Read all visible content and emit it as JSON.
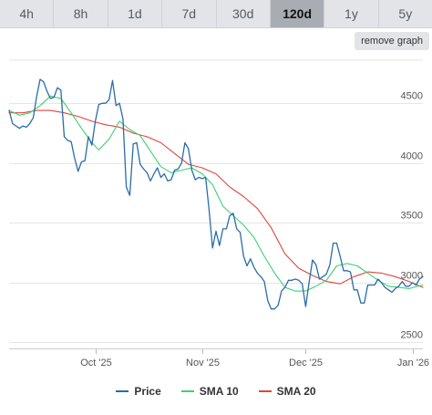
{
  "tabs": [
    {
      "label": "4h",
      "active": false
    },
    {
      "label": "8h",
      "active": false
    },
    {
      "label": "1d",
      "active": false
    },
    {
      "label": "7d",
      "active": false
    },
    {
      "label": "30d",
      "active": false
    },
    {
      "label": "120d",
      "active": true
    },
    {
      "label": "1y",
      "active": false
    },
    {
      "label": "5y",
      "active": false
    }
  ],
  "remove_graph_label": "remove graph",
  "colors": {
    "price": "#2a6ca8",
    "sma10": "#3ecf72",
    "sma20": "#e0453b",
    "grid": "#e6e6e6"
  },
  "chart_data": {
    "type": "line",
    "title": "",
    "xlabel": "",
    "ylabel": "",
    "x_ticks": [
      {
        "label": "Oct '25",
        "date": "2025-10-01"
      },
      {
        "label": "Nov '25",
        "date": "2025-11-01"
      },
      {
        "label": "Dec '25",
        "date": "2025-12-01"
      },
      {
        "label": "Jan '26",
        "date": "2026-01-01"
      }
    ],
    "xlim": [
      "2025-09-06",
      "2026-01-04"
    ],
    "y_ticks": [
      2500,
      3000,
      3500,
      4000,
      4500
    ],
    "ylim": [
      2450,
      4860
    ],
    "grid": true,
    "legend": "bottom-center",
    "series": [
      {
        "name": "Price",
        "color": "#2a6ca8",
        "points": [
          [
            "2025-09-06",
            4440
          ],
          [
            "2025-09-07",
            4330
          ],
          [
            "2025-09-08",
            4310
          ],
          [
            "2025-09-09",
            4290
          ],
          [
            "2025-09-10",
            4310
          ],
          [
            "2025-09-11",
            4300
          ],
          [
            "2025-09-12",
            4330
          ],
          [
            "2025-09-13",
            4380
          ],
          [
            "2025-09-14",
            4560
          ],
          [
            "2025-09-15",
            4700
          ],
          [
            "2025-09-16",
            4680
          ],
          [
            "2025-09-17",
            4600
          ],
          [
            "2025-09-18",
            4540
          ],
          [
            "2025-09-19",
            4550
          ],
          [
            "2025-09-20",
            4630
          ],
          [
            "2025-09-21",
            4610
          ],
          [
            "2025-09-22",
            4220
          ],
          [
            "2025-09-23",
            4190
          ],
          [
            "2025-09-24",
            4180
          ],
          [
            "2025-09-25",
            4040
          ],
          [
            "2025-09-26",
            3930
          ],
          [
            "2025-09-27",
            4010
          ],
          [
            "2025-09-28",
            4020
          ],
          [
            "2025-09-29",
            4220
          ],
          [
            "2025-09-30",
            4150
          ],
          [
            "2025-10-01",
            4350
          ],
          [
            "2025-10-02",
            4490
          ],
          [
            "2025-10-03",
            4500
          ],
          [
            "2025-10-04",
            4500
          ],
          [
            "2025-10-05",
            4530
          ],
          [
            "2025-10-06",
            4690
          ],
          [
            "2025-10-07",
            4480
          ],
          [
            "2025-10-08",
            4500
          ],
          [
            "2025-10-09",
            4370
          ],
          [
            "2025-10-10",
            3800
          ],
          [
            "2025-10-11",
            3730
          ],
          [
            "2025-10-12",
            4160
          ],
          [
            "2025-10-13",
            4170
          ],
          [
            "2025-10-14",
            3990
          ],
          [
            "2025-10-15",
            3950
          ],
          [
            "2025-10-16",
            3920
          ],
          [
            "2025-10-17",
            3850
          ],
          [
            "2025-10-18",
            3910
          ],
          [
            "2025-10-19",
            3960
          ],
          [
            "2025-10-20",
            3880
          ],
          [
            "2025-10-21",
            3910
          ],
          [
            "2025-10-22",
            3850
          ],
          [
            "2025-10-23",
            3860
          ],
          [
            "2025-10-24",
            3940
          ],
          [
            "2025-10-25",
            3950
          ],
          [
            "2025-10-26",
            4000
          ],
          [
            "2025-10-27",
            4170
          ],
          [
            "2025-10-28",
            4120
          ],
          [
            "2025-10-29",
            3940
          ],
          [
            "2025-10-30",
            3860
          ],
          [
            "2025-10-31",
            3880
          ],
          [
            "2025-11-01",
            3870
          ],
          [
            "2025-11-02",
            3880
          ],
          [
            "2025-11-03",
            3610
          ],
          [
            "2025-11-04",
            3290
          ],
          [
            "2025-11-05",
            3430
          ],
          [
            "2025-11-06",
            3310
          ],
          [
            "2025-11-07",
            3450
          ],
          [
            "2025-11-08",
            3450
          ],
          [
            "2025-11-09",
            3560
          ],
          [
            "2025-11-10",
            3580
          ],
          [
            "2025-11-11",
            3450
          ],
          [
            "2025-11-12",
            3420
          ],
          [
            "2025-11-13",
            3220
          ],
          [
            "2025-11-14",
            3140
          ],
          [
            "2025-11-15",
            3200
          ],
          [
            "2025-11-16",
            3130
          ],
          [
            "2025-11-17",
            3080
          ],
          [
            "2025-11-18",
            3050
          ],
          [
            "2025-11-19",
            3010
          ],
          [
            "2025-11-20",
            2850
          ],
          [
            "2025-11-21",
            2780
          ],
          [
            "2025-11-22",
            2780
          ],
          [
            "2025-11-23",
            2810
          ],
          [
            "2025-11-24",
            2930
          ],
          [
            "2025-11-25",
            2960
          ],
          [
            "2025-11-26",
            3020
          ],
          [
            "2025-11-27",
            3020
          ],
          [
            "2025-11-28",
            3030
          ],
          [
            "2025-11-29",
            3020
          ],
          [
            "2025-11-30",
            2990
          ],
          [
            "2025-12-01",
            2800
          ],
          [
            "2025-12-02",
            3000
          ],
          [
            "2025-12-03",
            3190
          ],
          [
            "2025-12-04",
            3150
          ],
          [
            "2025-12-05",
            3030
          ],
          [
            "2025-12-06",
            3050
          ],
          [
            "2025-12-07",
            3070
          ],
          [
            "2025-12-08",
            3150
          ],
          [
            "2025-12-09",
            3330
          ],
          [
            "2025-12-10",
            3330
          ],
          [
            "2025-12-11",
            3220
          ],
          [
            "2025-12-12",
            3100
          ],
          [
            "2025-12-13",
            3100
          ],
          [
            "2025-12-14",
            3090
          ],
          [
            "2025-12-15",
            2940
          ],
          [
            "2025-12-16",
            2940
          ],
          [
            "2025-12-17",
            2830
          ],
          [
            "2025-12-18",
            2830
          ],
          [
            "2025-12-19",
            2980
          ],
          [
            "2025-12-20",
            2980
          ],
          [
            "2025-12-21",
            2980
          ],
          [
            "2025-12-22",
            3030
          ],
          [
            "2025-12-23",
            3000
          ],
          [
            "2025-12-24",
            2960
          ],
          [
            "2025-12-25",
            2940
          ],
          [
            "2025-12-26",
            2920
          ],
          [
            "2025-12-27",
            2950
          ],
          [
            "2025-12-28",
            2970
          ],
          [
            "2025-12-29",
            3010
          ],
          [
            "2025-12-30",
            2970
          ],
          [
            "2025-12-31",
            2970
          ],
          [
            "2026-01-01",
            3000
          ],
          [
            "2026-01-02",
            2980
          ],
          [
            "2026-01-03",
            3030
          ],
          [
            "2026-01-04",
            3050
          ]
        ]
      },
      {
        "name": "SMA 10",
        "color": "#3ecf72",
        "points": [
          [
            "2025-09-06",
            4440
          ],
          [
            "2025-09-09",
            4400
          ],
          [
            "2025-09-12",
            4420
          ],
          [
            "2025-09-15",
            4480
          ],
          [
            "2025-09-18",
            4560
          ],
          [
            "2025-09-21",
            4540
          ],
          [
            "2025-09-24",
            4420
          ],
          [
            "2025-09-27",
            4290
          ],
          [
            "2025-09-30",
            4170
          ],
          [
            "2025-10-02",
            4110
          ],
          [
            "2025-10-05",
            4200
          ],
          [
            "2025-10-08",
            4350
          ],
          [
            "2025-10-11",
            4280
          ],
          [
            "2025-10-14",
            4230
          ],
          [
            "2025-10-17",
            4100
          ],
          [
            "2025-10-20",
            3970
          ],
          [
            "2025-10-23",
            3920
          ],
          [
            "2025-10-26",
            3940
          ],
          [
            "2025-10-29",
            3960
          ],
          [
            "2025-11-01",
            3910
          ],
          [
            "2025-11-04",
            3820
          ],
          [
            "2025-11-07",
            3640
          ],
          [
            "2025-11-10",
            3560
          ],
          [
            "2025-11-13",
            3480
          ],
          [
            "2025-11-16",
            3380
          ],
          [
            "2025-11-19",
            3220
          ],
          [
            "2025-11-22",
            3080
          ],
          [
            "2025-11-25",
            2960
          ],
          [
            "2025-11-28",
            2930
          ],
          [
            "2025-12-01",
            2930
          ],
          [
            "2025-12-04",
            2970
          ],
          [
            "2025-12-07",
            3020
          ],
          [
            "2025-12-10",
            3140
          ],
          [
            "2025-12-13",
            3160
          ],
          [
            "2025-12-16",
            3140
          ],
          [
            "2025-12-19",
            3080
          ],
          [
            "2025-12-22",
            3020
          ],
          [
            "2025-12-25",
            2970
          ],
          [
            "2025-12-28",
            2960
          ],
          [
            "2025-12-31",
            2950
          ],
          [
            "2026-01-04",
            2980
          ]
        ]
      },
      {
        "name": "SMA 20",
        "color": "#e0453b",
        "points": [
          [
            "2025-09-06",
            4420
          ],
          [
            "2025-09-10",
            4420
          ],
          [
            "2025-09-14",
            4440
          ],
          [
            "2025-09-18",
            4440
          ],
          [
            "2025-09-22",
            4420
          ],
          [
            "2025-09-26",
            4390
          ],
          [
            "2025-09-30",
            4350
          ],
          [
            "2025-10-04",
            4320
          ],
          [
            "2025-10-08",
            4300
          ],
          [
            "2025-10-12",
            4250
          ],
          [
            "2025-10-16",
            4220
          ],
          [
            "2025-10-20",
            4170
          ],
          [
            "2025-10-24",
            4080
          ],
          [
            "2025-10-28",
            3990
          ],
          [
            "2025-11-01",
            3960
          ],
          [
            "2025-11-05",
            3910
          ],
          [
            "2025-11-09",
            3800
          ],
          [
            "2025-11-13",
            3720
          ],
          [
            "2025-11-17",
            3620
          ],
          [
            "2025-11-21",
            3460
          ],
          [
            "2025-11-25",
            3240
          ],
          [
            "2025-11-29",
            3120
          ],
          [
            "2025-12-03",
            3060
          ],
          [
            "2025-12-07",
            3010
          ],
          [
            "2025-12-11",
            2990
          ],
          [
            "2025-12-15",
            3050
          ],
          [
            "2025-12-19",
            3090
          ],
          [
            "2025-12-23",
            3080
          ],
          [
            "2025-12-27",
            3050
          ],
          [
            "2025-12-31",
            3010
          ],
          [
            "2026-01-04",
            2960
          ]
        ]
      }
    ]
  }
}
